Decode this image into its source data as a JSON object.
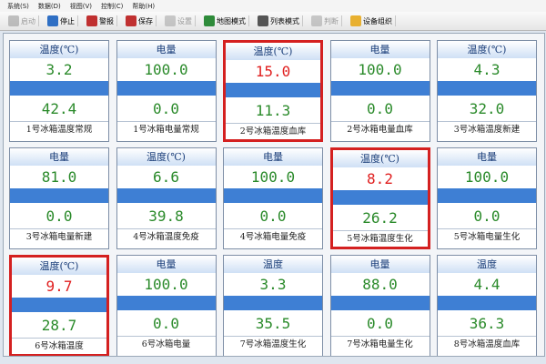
{
  "menu": [
    "系统(S)",
    "数据(D)",
    "视图(V)",
    "控制(C)",
    "帮助(H)"
  ],
  "toolbar": [
    {
      "label": "启动",
      "icon": "#8a8a8a",
      "enabled": false
    },
    {
      "label": "停止",
      "icon": "#2f6fc4",
      "enabled": true
    },
    {
      "label": "警报",
      "icon": "#c03030",
      "enabled": true
    },
    {
      "label": "保存",
      "icon": "#c03030",
      "enabled": true
    },
    {
      "label": "设置",
      "icon": "#9a9a9a",
      "enabled": false
    },
    {
      "label": "地图模式",
      "icon": "#2e8b3a",
      "enabled": true
    },
    {
      "label": "列表模式",
      "icon": "#555555",
      "enabled": true
    },
    {
      "label": "判断",
      "icon": "#9a9a9a",
      "enabled": false
    },
    {
      "label": "设备组织",
      "icon": "#e8b030",
      "enabled": true
    }
  ],
  "cards": [
    {
      "header": "温度(℃)",
      "top": "3.2",
      "bottom": "42.4",
      "name": "1号冰箱温度常规",
      "alarm": false
    },
    {
      "header": "电量",
      "top": "100.0",
      "bottom": "0.0",
      "name": "1号冰箱电量常规",
      "alarm": false
    },
    {
      "header": "温度(℃)",
      "top": "15.0",
      "bottom": "11.3",
      "name": "2号冰箱温度血库",
      "alarm": true
    },
    {
      "header": "电量",
      "top": "100.0",
      "bottom": "0.0",
      "name": "2号冰箱电量血库",
      "alarm": false
    },
    {
      "header": "温度(℃)",
      "top": "4.3",
      "bottom": "32.0",
      "name": "3号冰箱温度新建",
      "alarm": false
    },
    {
      "header": "电量",
      "top": "81.0",
      "bottom": "0.0",
      "name": "3号冰箱电量新建",
      "alarm": false
    },
    {
      "header": "温度(℃)",
      "top": "6.6",
      "bottom": "39.8",
      "name": "4号冰箱温度免疫",
      "alarm": false
    },
    {
      "header": "电量",
      "top": "100.0",
      "bottom": "0.0",
      "name": "4号冰箱电量免疫",
      "alarm": false
    },
    {
      "header": "温度(℃)",
      "top": "8.2",
      "bottom": "26.2",
      "name": "5号冰箱温度生化",
      "alarm": true
    },
    {
      "header": "电量",
      "top": "100.0",
      "bottom": "0.0",
      "name": "5号冰箱电量生化",
      "alarm": false
    },
    {
      "header": "温度(℃)",
      "top": "9.7",
      "bottom": "28.7",
      "name": "6号冰箱温度",
      "alarm": true
    },
    {
      "header": "电量",
      "top": "100.0",
      "bottom": "0.0",
      "name": "6号冰箱电量",
      "alarm": false
    },
    {
      "header": "温度",
      "top": "3.3",
      "bottom": "35.5",
      "name": "7号冰箱温度生化",
      "alarm": false
    },
    {
      "header": "电量",
      "top": "88.0",
      "bottom": "0.0",
      "name": "7号冰箱电量生化",
      "alarm": false
    },
    {
      "header": "温度",
      "top": "4.4",
      "bottom": "36.3",
      "name": "8号冰箱温度血库",
      "alarm": false
    }
  ]
}
